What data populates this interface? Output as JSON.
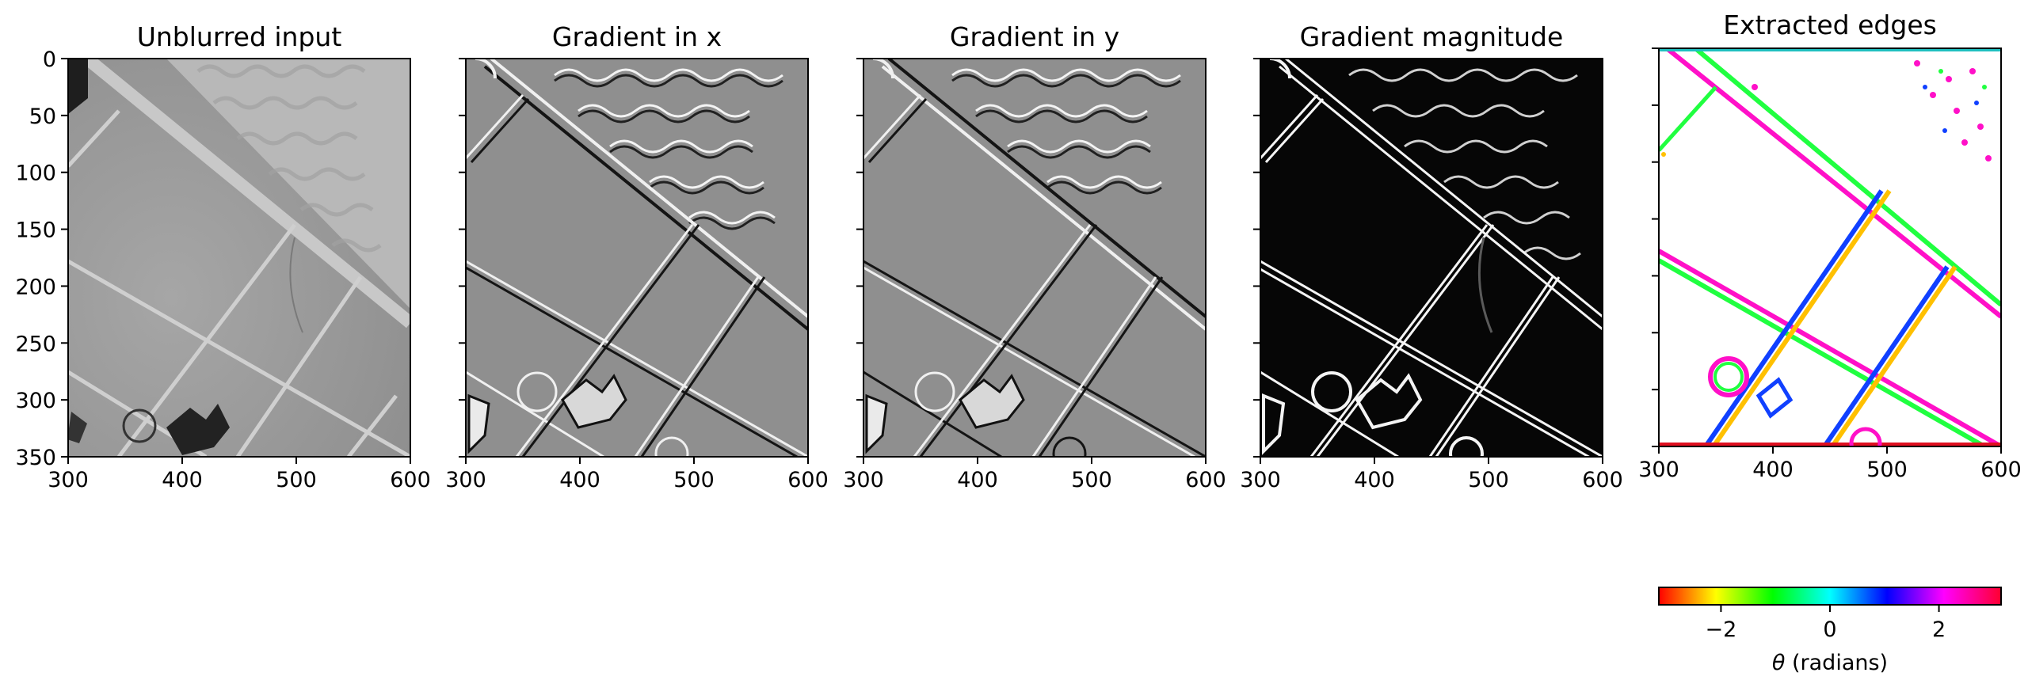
{
  "panels": [
    {
      "title": "Unblurred input",
      "kind": "input"
    },
    {
      "title": "Gradient in x",
      "kind": "gx"
    },
    {
      "title": "Gradient in y",
      "kind": "gy"
    },
    {
      "title": "Gradient magnitude",
      "kind": "mag"
    },
    {
      "title": "Extracted edges",
      "kind": "edges"
    }
  ],
  "axes": {
    "x_ticks": [
      "300",
      "400",
      "500",
      "600"
    ],
    "y_ticks": [
      "0",
      "50",
      "100",
      "150",
      "200",
      "250",
      "300",
      "350"
    ],
    "x_range": [
      300,
      600
    ],
    "y_range": [
      0,
      350
    ],
    "y_tick_labels_shown_on_first_panel_only": true
  },
  "colorbar": {
    "ticks": [
      "−2",
      "0",
      "2"
    ],
    "range": [
      -3.14,
      3.14
    ],
    "label_symbol": "θ",
    "label_unit": " (radians)",
    "colormap": "hsv"
  }
}
